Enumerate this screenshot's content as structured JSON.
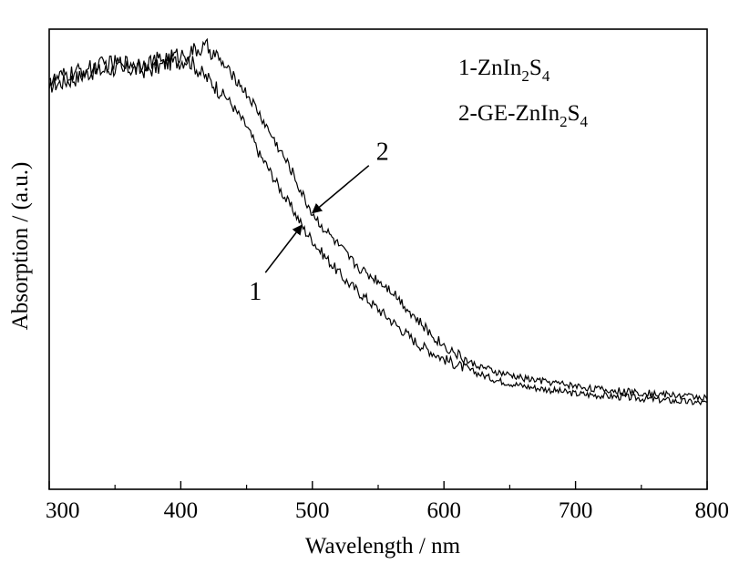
{
  "chart_data": {
    "type": "line",
    "title": "",
    "xlabel": "Wavelength / nm",
    "ylabel": "Absorption / (a.u.)",
    "xlim": [
      300,
      800
    ],
    "ylim": [
      0,
      1
    ],
    "yticks_shown": false,
    "grid": false,
    "x_ticks": [
      "300",
      "400",
      "500",
      "600",
      "700",
      "800"
    ],
    "legend": {
      "placement": "top-right",
      "entries": [
        {
          "prefix": "1-ZnIn",
          "sub1": "2",
          "mid": "S",
          "sub2": "4"
        },
        {
          "prefix": "2-GE-ZnIn",
          "sub1": "2",
          "mid": "S",
          "sub2": "4"
        }
      ]
    },
    "annotations": [
      {
        "text": "1",
        "series": 1,
        "at_x": 492
      },
      {
        "text": "2",
        "series": 2,
        "at_x": 500
      }
    ],
    "series": [
      {
        "name": "1",
        "x": [
          300,
          310,
          320,
          330,
          340,
          350,
          360,
          370,
          380,
          390,
          400,
          405,
          410,
          415,
          420,
          425,
          430,
          435,
          440,
          445,
          450,
          455,
          460,
          465,
          470,
          475,
          480,
          485,
          490,
          495,
          500,
          505,
          510,
          515,
          520,
          525,
          530,
          540,
          550,
          560,
          570,
          580,
          590,
          600,
          620,
          640,
          660,
          680,
          700,
          720,
          740,
          760,
          780,
          800
        ],
        "y": [
          0.89,
          0.9,
          0.91,
          0.925,
          0.93,
          0.935,
          0.935,
          0.93,
          0.935,
          0.95,
          0.955,
          0.96,
          0.945,
          0.925,
          0.91,
          0.895,
          0.875,
          0.86,
          0.835,
          0.81,
          0.785,
          0.75,
          0.71,
          0.685,
          0.655,
          0.625,
          0.595,
          0.57,
          0.54,
          0.51,
          0.49,
          0.465,
          0.445,
          0.425,
          0.405,
          0.385,
          0.37,
          0.34,
          0.31,
          0.28,
          0.25,
          0.22,
          0.2,
          0.18,
          0.15,
          0.125,
          0.11,
          0.1,
          0.09,
          0.085,
          0.08,
          0.075,
          0.07,
          0.065
        ]
      },
      {
        "name": "2",
        "x": [
          300,
          310,
          320,
          330,
          340,
          350,
          360,
          370,
          380,
          390,
          400,
          405,
          410,
          415,
          420,
          425,
          430,
          435,
          440,
          445,
          450,
          455,
          460,
          465,
          470,
          475,
          480,
          485,
          490,
          495,
          500,
          505,
          510,
          515,
          520,
          525,
          530,
          540,
          550,
          560,
          570,
          580,
          590,
          600,
          620,
          640,
          660,
          680,
          700,
          720,
          740,
          760,
          780,
          800
        ],
        "y": [
          0.9,
          0.915,
          0.925,
          0.935,
          0.945,
          0.95,
          0.95,
          0.95,
          0.955,
          0.965,
          0.97,
          0.975,
          0.98,
          0.985,
          0.99,
          0.975,
          0.955,
          0.935,
          0.915,
          0.895,
          0.87,
          0.845,
          0.815,
          0.785,
          0.755,
          0.725,
          0.695,
          0.665,
          0.625,
          0.59,
          0.56,
          0.535,
          0.515,
          0.495,
          0.475,
          0.455,
          0.435,
          0.405,
          0.385,
          0.36,
          0.32,
          0.28,
          0.245,
          0.215,
          0.17,
          0.145,
          0.13,
          0.12,
          0.11,
          0.1,
          0.095,
          0.09,
          0.085,
          0.08
        ]
      }
    ]
  }
}
